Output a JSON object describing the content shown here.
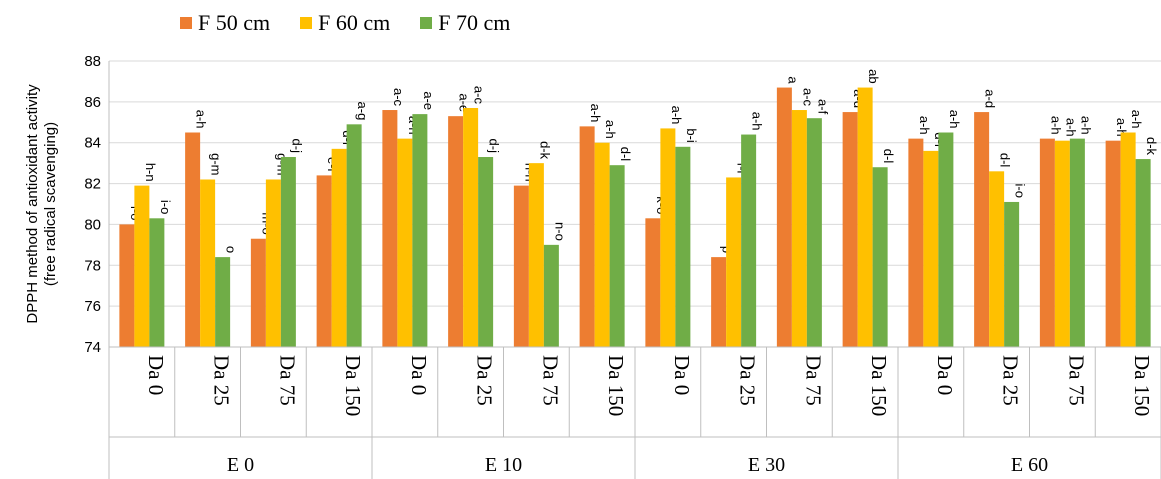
{
  "chart_data": {
    "type": "bar",
    "ylabel": "DPPH method of antioxidant activity (free radical scavenging)",
    "ylabel_lines": [
      "DPPH method of antioxidant activity",
      "(free radical scavenging)"
    ],
    "ylim": [
      74,
      88
    ],
    "yticks": [
      74,
      76,
      78,
      80,
      82,
      84,
      86,
      88
    ],
    "grid": true,
    "legend_position": "top",
    "groups": [
      "E 0",
      "E 10",
      "E 30",
      "E 60"
    ],
    "categories": [
      "Da 0",
      "Da 25",
      "Da 75",
      "Da 150",
      "Da 0",
      "Da 25",
      "Da 75",
      "Da 150",
      "Da 0",
      "Da 25",
      "Da 75",
      "Da 150",
      "Da 0",
      "Da 25",
      "Da 75",
      "Da 150"
    ],
    "series": [
      {
        "name": "F 50 cm",
        "color": "#ED7D31",
        "values": [
          80.0,
          84.5,
          79.3,
          82.4,
          85.6,
          85.3,
          81.9,
          84.8,
          80.3,
          78.4,
          86.7,
          85.5,
          84.2,
          85.5,
          84.2,
          84.1
        ],
        "labels": [
          "l-o",
          "a-h",
          "m-o",
          "e-l",
          "a-c",
          "a-e",
          "h-n",
          "a-h",
          "k-o",
          "p",
          "a",
          "a-d",
          "a-h",
          "a-d",
          "a-h",
          "a-h"
        ]
      },
      {
        "name": "F 60 cm",
        "color": "#FFC000",
        "values": [
          81.9,
          82.2,
          82.2,
          83.7,
          84.2,
          85.7,
          83.0,
          84.0,
          84.7,
          82.3,
          85.6,
          86.7,
          83.6,
          82.6,
          84.1,
          84.5
        ],
        "labels": [
          "h-n",
          "g-m",
          "g-m",
          "d-i",
          "a-h",
          "a-c",
          "d-k",
          "a-h",
          "a-h",
          "f-l",
          "a-c",
          "ab",
          "d-i",
          "d-l",
          "a-h",
          "a-h"
        ]
      },
      {
        "name": "F 70 cm",
        "color": "#70AD47",
        "values": [
          80.3,
          78.4,
          83.3,
          84.9,
          85.4,
          83.3,
          79.0,
          82.9,
          83.8,
          84.4,
          85.2,
          82.8,
          84.5,
          81.1,
          84.2,
          83.2
        ],
        "labels": [
          "i-o",
          "o",
          "d-j",
          "a-g",
          "a-e",
          "d-j",
          "n-o",
          "d-l",
          "b-i",
          "a-h",
          "a-f",
          "d-l",
          "a-h",
          "i-o",
          "a-h",
          "d-k"
        ]
      }
    ]
  }
}
